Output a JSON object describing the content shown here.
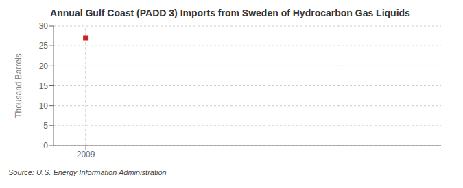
{
  "chart_data": {
    "type": "scatter",
    "title": "Annual Gulf Coast (PADD 3) Imports from Sweden of Hydrocarbon Gas Liquids",
    "ylabel": "Thousand Barrels",
    "annotations": [
      "Source: U.S. Energy Information Administration"
    ],
    "x": [
      2009
    ],
    "values": [
      27
    ],
    "color": "#cc2222",
    "marker": "square",
    "xlim": [
      2008.5,
      2014.5
    ],
    "xticks": [
      2009
    ],
    "ylim": [
      0,
      30
    ],
    "yticks": [
      0,
      5,
      10,
      15,
      20,
      25,
      30
    ],
    "grid": true
  }
}
